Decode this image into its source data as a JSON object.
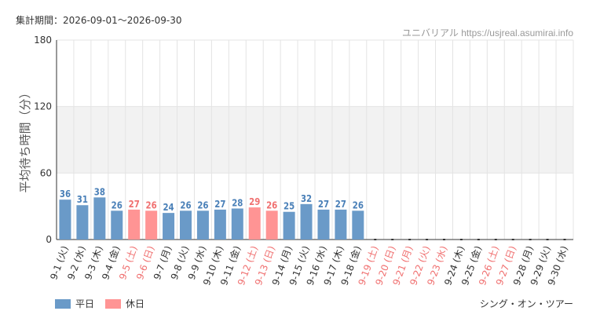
{
  "header": {
    "period": "集計期間：2026-09-01～2026-09-30",
    "site": "ユニバリアル https://usjreal.asumirai.info"
  },
  "footer": {
    "attraction": "シング・オン・ツアー"
  },
  "colors": {
    "weekday": "#6a9ac8",
    "weekday_label": "#4a80b8",
    "holiday": "#ff9494",
    "holiday_label": "#f07070",
    "band": "#f2f2f2",
    "grid": "#e4e4e4",
    "axis": "#333333"
  },
  "chart_data": {
    "type": "bar",
    "ylabel": "平均待ち時間（分）",
    "ylim": [
      0,
      180
    ],
    "yticks": [
      0,
      60,
      120,
      180
    ],
    "shaded_band": [
      60,
      120
    ],
    "categories": [
      "9-1 (火)",
      "9-2 (水)",
      "9-3 (木)",
      "9-4 (金)",
      "9-5 (土)",
      "9-6 (日)",
      "9-7 (月)",
      "9-8 (火)",
      "9-9 (水)",
      "9-10 (木)",
      "9-11 (金)",
      "9-12 (土)",
      "9-13 (日)",
      "9-14 (月)",
      "9-15 (火)",
      "9-16 (水)",
      "9-17 (木)",
      "9-18 (金)",
      "9-19 (土)",
      "9-20 (日)",
      "9-21 (月)",
      "9-22 (火)",
      "9-23 (水)",
      "9-24 (木)",
      "9-25 (金)",
      "9-26 (土)",
      "9-27 (日)",
      "9-28 (月)",
      "9-29 (火)",
      "9-30 (水)"
    ],
    "values": [
      36,
      31,
      38,
      26,
      27,
      26,
      24,
      26,
      26,
      27,
      28,
      29,
      26,
      25,
      32,
      27,
      27,
      26,
      null,
      null,
      null,
      null,
      null,
      null,
      null,
      null,
      null,
      null,
      null,
      null
    ],
    "day_type": [
      "weekday",
      "weekday",
      "weekday",
      "weekday",
      "holiday",
      "holiday",
      "weekday",
      "weekday",
      "weekday",
      "weekday",
      "weekday",
      "holiday",
      "holiday",
      "weekday",
      "weekday",
      "weekday",
      "weekday",
      "weekday",
      "holiday",
      "holiday",
      "holiday",
      "holiday",
      "holiday",
      "weekday",
      "weekday",
      "holiday",
      "holiday",
      "weekday",
      "weekday",
      "weekday"
    ],
    "legend": [
      {
        "label": "平日",
        "type": "weekday"
      },
      {
        "label": "休日",
        "type": "holiday"
      }
    ],
    "legend_position": "bottom-left",
    "grid": true
  }
}
